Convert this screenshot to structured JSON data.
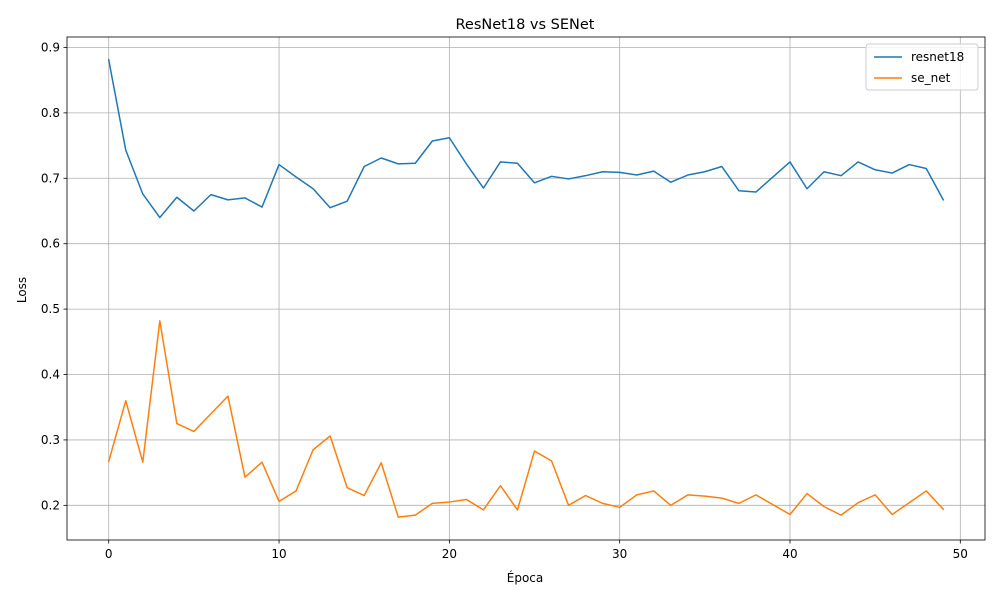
{
  "chart_data": {
    "type": "line",
    "title": "ResNet18 vs SENet",
    "xlabel": "Época",
    "ylabel": "Loss",
    "xlim": [
      -2.45,
      51.45
    ],
    "ylim": [
      0.147,
      0.916
    ],
    "xticks": [
      0,
      10,
      20,
      30,
      40,
      50
    ],
    "yticks": [
      0.2,
      0.3,
      0.4,
      0.5,
      0.6,
      0.7,
      0.8,
      0.9
    ],
    "grid": true,
    "legend_position": "top-right",
    "x": [
      0,
      1,
      2,
      3,
      4,
      5,
      6,
      7,
      8,
      9,
      10,
      11,
      12,
      13,
      14,
      15,
      16,
      17,
      18,
      19,
      20,
      21,
      22,
      23,
      24,
      25,
      26,
      27,
      28,
      29,
      30,
      31,
      32,
      33,
      34,
      35,
      36,
      37,
      38,
      39,
      40,
      41,
      42,
      43,
      44,
      45,
      46,
      47,
      48,
      49
    ],
    "series": [
      {
        "name": "resnet18",
        "color": "#1f77b4",
        "values": [
          0.881,
          0.743,
          0.676,
          0.64,
          0.671,
          0.65,
          0.675,
          0.667,
          0.67,
          0.656,
          0.721,
          0.702,
          0.684,
          0.655,
          0.665,
          0.718,
          0.731,
          0.722,
          0.723,
          0.757,
          0.762,
          0.722,
          0.685,
          0.725,
          0.723,
          0.693,
          0.703,
          0.699,
          0.704,
          0.71,
          0.709,
          0.705,
          0.711,
          0.694,
          0.705,
          0.71,
          0.718,
          0.681,
          0.679,
          0.702,
          0.725,
          0.684,
          0.71,
          0.704,
          0.725,
          0.713,
          0.708,
          0.721,
          0.715,
          0.667
        ]
      },
      {
        "name": "se_net",
        "color": "#ff7f0e",
        "values": [
          0.267,
          0.36,
          0.266,
          0.482,
          0.325,
          0.313,
          0.34,
          0.367,
          0.243,
          0.266,
          0.206,
          0.222,
          0.285,
          0.306,
          0.227,
          0.215,
          0.265,
          0.182,
          0.185,
          0.203,
          0.205,
          0.209,
          0.193,
          0.23,
          0.193,
          0.283,
          0.268,
          0.2,
          0.215,
          0.203,
          0.197,
          0.216,
          0.222,
          0.2,
          0.216,
          0.214,
          0.211,
          0.203,
          0.216,
          0.201,
          0.186,
          0.218,
          0.198,
          0.185,
          0.204,
          0.216,
          0.186,
          0.204,
          0.222,
          0.194
        ]
      }
    ]
  }
}
